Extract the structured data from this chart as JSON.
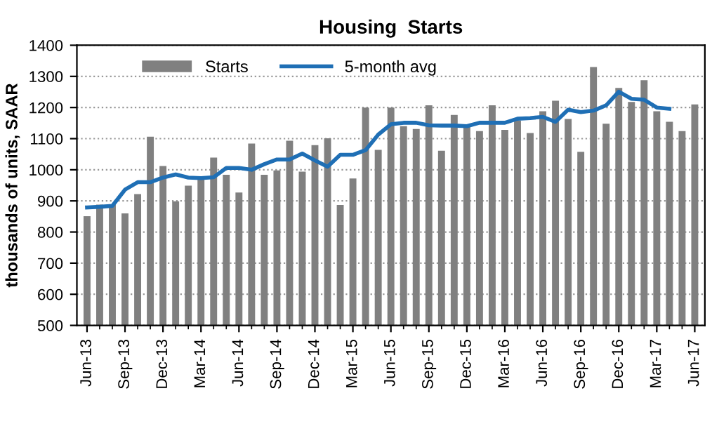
{
  "chart_data": {
    "type": "bar",
    "title": "Housing  Starts",
    "ylabel": "thousands of units, SAAR",
    "categories": [
      "Jun-13",
      null,
      null,
      "Sep-13",
      null,
      null,
      "Dec-13",
      null,
      null,
      "Mar-14",
      null,
      null,
      "Jun-14",
      null,
      null,
      "Sep-14",
      null,
      null,
      "Dec-14",
      null,
      null,
      "Mar-15",
      null,
      null,
      "Jun-15",
      null,
      null,
      "Sep-15",
      null,
      null,
      "Dec-15",
      null,
      null,
      "Mar-16",
      null,
      null,
      "Jun-16",
      null,
      null,
      "Sep-16",
      null,
      null,
      "Dec-16",
      null,
      null,
      "Mar-17",
      null,
      null,
      "Jun-17"
    ],
    "series": [
      {
        "name": "Starts",
        "color": "#808080",
        "values": [
          851,
          888,
          888,
          860,
          922,
          1106,
          1012,
          899,
          949,
          970,
          1039,
          984,
          927,
          1084,
          984,
          998,
          1093,
          994,
          1079,
          1101,
          887,
          972,
          1200,
          1064,
          1200,
          1140,
          1131,
          1207,
          1061,
          1176,
          1139,
          1124,
          1207,
          1128,
          1158,
          1118,
          1188,
          1222,
          1163,
          1058,
          1330,
          1148,
          1263,
          1218,
          1288,
          1188,
          1154,
          1124,
          1210
        ]
      },
      {
        "name": "5-month avg",
        "type": "line",
        "color": "#1f6fb5",
        "values": [
          879,
          881,
          884,
          936,
          960,
          960,
          975,
          985,
          975,
          973,
          976,
          1006,
          1006,
          1000,
          1018,
          1033,
          1033,
          1052,
          1030,
          1010,
          1048,
          1048,
          1063,
          1113,
          1146,
          1151,
          1151,
          1143,
          1142,
          1142,
          1140,
          1151,
          1151,
          1151,
          1164,
          1166,
          1170,
          1154,
          1193,
          1185,
          1190,
          1207,
          1251,
          1228,
          1225,
          1200,
          1196,
          null,
          null
        ]
      }
    ],
    "ylim": [
      500,
      1400
    ],
    "yticks": [
      500,
      600,
      700,
      800,
      900,
      1000,
      1100,
      1200,
      1300,
      1400
    ],
    "grid": "y",
    "legend": "top left"
  }
}
